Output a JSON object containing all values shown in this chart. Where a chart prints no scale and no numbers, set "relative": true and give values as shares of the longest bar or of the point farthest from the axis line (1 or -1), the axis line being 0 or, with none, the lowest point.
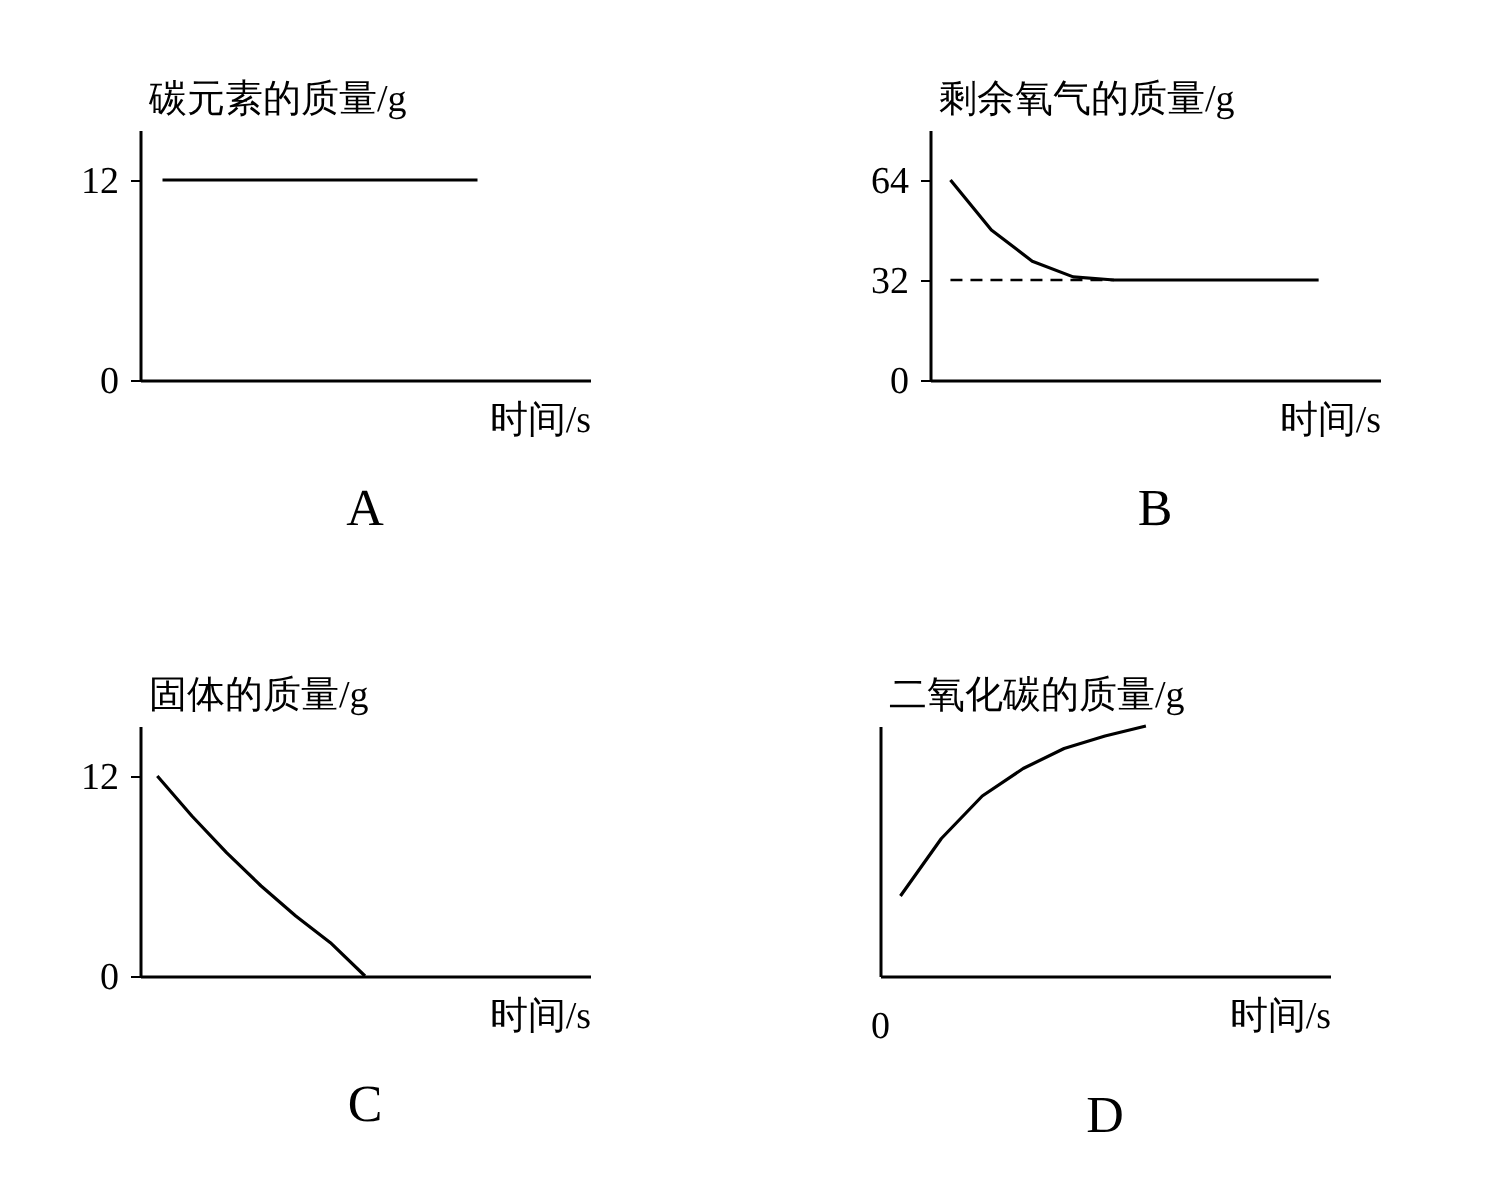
{
  "chart_data": [
    {
      "type": "line",
      "ylabel": "碳元素的质量/g",
      "xlabel": "时间/s",
      "categories": [
        null,
        null,
        null,
        null,
        null,
        null,
        null,
        null,
        null,
        null
      ],
      "ylim": [
        0,
        15
      ],
      "yticks": [
        0,
        12
      ],
      "tick_labels": "y",
      "grid": false,
      "series": [
        {
          "color": "#000000",
          "values": [
            12,
            12,
            12,
            12,
            12,
            12,
            12,
            12,
            null,
            null
          ]
        }
      ],
      "annotations": [
        "A"
      ]
    },
    {
      "type": "line",
      "ylabel": "剩余氧气的质量/g",
      "xlabel": "时间/s",
      "categories": [
        null,
        null,
        null,
        null,
        null,
        null,
        null,
        null,
        null,
        null,
        null
      ],
      "ylim": [
        0,
        80
      ],
      "yticks": [
        0,
        32,
        64
      ],
      "tick_labels": "y",
      "grid": false,
      "series": [
        {
          "color": "#000000",
          "values": [
            64,
            48,
            38,
            33,
            32,
            32,
            32,
            32,
            32,
            32,
            null
          ]
        }
      ],
      "ref_lines": [
        {
          "axis": "y",
          "value": 32,
          "line_style": "dashed"
        }
      ],
      "annotations": [
        "B"
      ]
    },
    {
      "type": "line",
      "ylabel": "固体的质量/g",
      "xlabel": "时间/s",
      "categories": [
        null,
        null,
        null,
        null,
        null,
        null,
        null,
        null,
        null,
        null,
        null,
        null,
        null
      ],
      "ylim": [
        0,
        15
      ],
      "yticks": [
        0,
        12
      ],
      "tick_labels": "y",
      "grid": false,
      "series": [
        {
          "color": "#000000",
          "values": [
            12,
            9.6,
            7.4,
            5.4,
            3.6,
            2,
            0,
            null,
            null,
            null,
            null,
            null,
            null
          ]
        }
      ],
      "annotations": [
        "C"
      ]
    },
    {
      "type": "line",
      "ylabel": "二氧化碳的质量/g",
      "xlabel": "时间/s",
      "categories": [
        null,
        null,
        null,
        null,
        null,
        null,
        null,
        null,
        null,
        null,
        null
      ],
      "relative": true,
      "tick_labels": false,
      "grid": false,
      "series": [
        {
          "color": "#000000",
          "values": [
            0.32,
            0.55,
            0.72,
            0.83,
            0.91,
            0.96,
            1,
            null,
            null,
            null,
            null
          ]
        }
      ],
      "annotations": [
        "0",
        "D"
      ]
    }
  ]
}
